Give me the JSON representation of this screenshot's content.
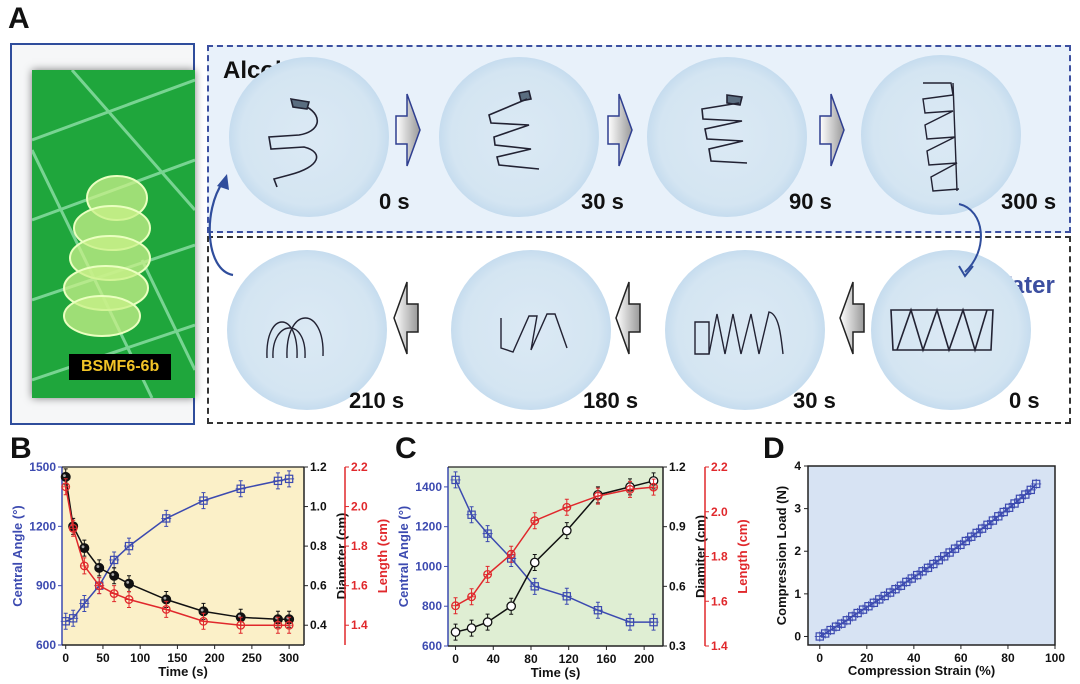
{
  "panel_labels": {
    "a": "A",
    "b": "B",
    "c": "C",
    "d": "D"
  },
  "panel_a": {
    "sample_label": "BSMF6-6b",
    "alcohol_title": "Alcohol",
    "water_title": "Water",
    "alcohol_sequence": [
      "0 s",
      "30 s",
      "90 s",
      "300 s"
    ],
    "water_sequence": [
      "0 s",
      "30 s",
      "180 s",
      "210 s"
    ],
    "colors": {
      "alcohol_border": "#3c4fa0",
      "water_border": "#333333",
      "photo_border": "#2f4d9c",
      "label_text": "#f2c427"
    }
  },
  "chart_data": [
    {
      "id": "B",
      "type": "line",
      "title": "",
      "xlabel": "Time (s)",
      "xlim": [
        -5,
        320
      ],
      "xticks": [
        0,
        50,
        100,
        150,
        200,
        250,
        300
      ],
      "background": "#fbf0c8",
      "axes": [
        {
          "name": "Central Angle (°)",
          "side": "left",
          "color": "#3c4ab0",
          "ylim": [
            600,
            1500
          ],
          "ticks": [
            600,
            900,
            1200,
            1500
          ]
        },
        {
          "name": "Diameter (cm)",
          "side": "right",
          "color": "#111111",
          "ylim": [
            0.3,
            1.2
          ],
          "ticks": [
            0.4,
            0.6,
            0.8,
            1.0,
            1.2
          ]
        },
        {
          "name": "Length (cm)",
          "side": "right-outer",
          "color": "#e0282c",
          "ylim": [
            1.3,
            2.2
          ],
          "ticks": [
            1.4,
            1.6,
            1.8,
            2.0,
            2.2
          ]
        }
      ],
      "x": [
        0,
        10,
        25,
        45,
        65,
        85,
        135,
        185,
        235,
        285,
        300
      ],
      "series": [
        {
          "name": "Central Angle",
          "axis": 0,
          "color": "#3c4ab0",
          "marker": "open-square-cross",
          "values": [
            720,
            735,
            810,
            900,
            1030,
            1100,
            1240,
            1330,
            1390,
            1430,
            1440
          ]
        },
        {
          "name": "Diameter",
          "axis": 1,
          "color": "#111111",
          "marker": "filled-circle",
          "values": [
            1.15,
            0.9,
            0.79,
            0.69,
            0.65,
            0.61,
            0.53,
            0.47,
            0.44,
            0.43,
            0.43
          ]
        },
        {
          "name": "Length",
          "axis": 2,
          "color": "#e0282c",
          "marker": "open-circle-cross",
          "values": [
            2.1,
            1.89,
            1.7,
            1.6,
            1.56,
            1.53,
            1.48,
            1.42,
            1.4,
            1.4,
            1.4
          ]
        }
      ]
    },
    {
      "id": "C",
      "type": "line",
      "title": "",
      "xlabel": "Time (s)",
      "xlim": [
        -8,
        220
      ],
      "xticks": [
        0,
        40,
        80,
        120,
        160,
        200
      ],
      "background": "#dfeed3",
      "axes": [
        {
          "name": "Central Angle (°)",
          "side": "left",
          "color": "#3c4ab0",
          "ylim": [
            600,
            1500
          ],
          "ticks": [
            600,
            800,
            1000,
            1200,
            1400
          ]
        },
        {
          "name": "Diamiter (cm)",
          "side": "right",
          "color": "#111111",
          "ylim": [
            0.3,
            1.2
          ],
          "ticks": [
            0.3,
            0.6,
            0.9,
            1.2
          ]
        },
        {
          "name": "Length (cm)",
          "side": "right-outer",
          "color": "#e0282c",
          "ylim": [
            1.4,
            2.2
          ],
          "ticks": [
            1.4,
            1.6,
            1.8,
            2.0,
            2.2
          ]
        }
      ],
      "x": [
        0,
        17,
        34,
        59,
        84,
        118,
        151,
        185,
        210
      ],
      "series": [
        {
          "name": "Central Angle",
          "axis": 0,
          "color": "#3c4ab0",
          "marker": "open-square-cross",
          "values": [
            1435,
            1260,
            1165,
            1040,
            900,
            850,
            780,
            720,
            720
          ]
        },
        {
          "name": "Diamiter",
          "axis": 1,
          "color": "#111111",
          "marker": "open-circle",
          "values": [
            0.37,
            0.39,
            0.42,
            0.5,
            0.72,
            0.88,
            1.06,
            1.1,
            1.13
          ]
        },
        {
          "name": "Length",
          "axis": 2,
          "color": "#e0282c",
          "marker": "open-circle-cross",
          "values": [
            1.58,
            1.62,
            1.72,
            1.81,
            1.96,
            2.02,
            2.07,
            2.1,
            2.11
          ]
        }
      ]
    },
    {
      "id": "D",
      "type": "line",
      "title": "",
      "xlabel": "Compression Strain (%)",
      "ylabel": "Compression Load (N)",
      "xlim": [
        -5,
        100
      ],
      "ylim": [
        -0.2,
        4
      ],
      "xticks": [
        0,
        20,
        40,
        60,
        80,
        100
      ],
      "yticks": [
        0,
        1,
        2,
        3,
        4
      ],
      "background": "#d7e3f3",
      "series": [
        {
          "name": "Compression Load",
          "color": "#3c4ab0",
          "marker": "open-square-cross",
          "x": [
            0,
            2.3,
            4.6,
            6.9,
            9.2,
            11.5,
            13.8,
            16.1,
            18.4,
            20.7,
            23,
            25.3,
            27.6,
            29.9,
            32.2,
            34.5,
            36.8,
            39.1,
            41.4,
            43.7,
            46,
            48.3,
            50.6,
            52.9,
            55.2,
            57.5,
            59.8,
            62.1,
            64.4,
            66.7,
            69,
            71.3,
            73.6,
            75.9,
            78.2,
            80.5,
            82.8,
            85.1,
            87.4,
            89.7,
            92
          ],
          "values": [
            0,
            0.07,
            0.15,
            0.23,
            0.3,
            0.38,
            0.47,
            0.55,
            0.63,
            0.71,
            0.79,
            0.87,
            0.95,
            1.03,
            1.11,
            1.19,
            1.28,
            1.36,
            1.44,
            1.53,
            1.61,
            1.7,
            1.79,
            1.88,
            1.97,
            2.06,
            2.15,
            2.24,
            2.34,
            2.43,
            2.53,
            2.62,
            2.72,
            2.82,
            2.92,
            3.02,
            3.12,
            3.23,
            3.33,
            3.44,
            3.58
          ]
        }
      ]
    }
  ]
}
